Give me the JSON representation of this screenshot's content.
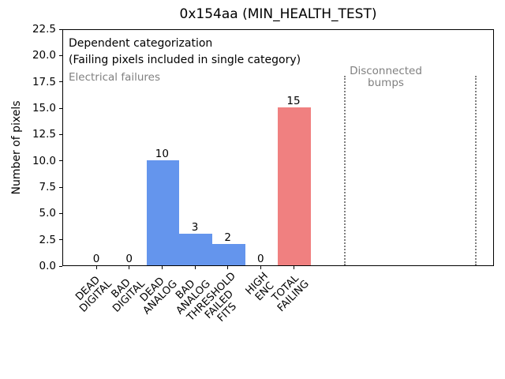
{
  "chart_data": {
    "type": "bar",
    "title": "0x154aa (MIN_HEALTH_TEST)",
    "xlabel": "",
    "ylabel": "Number of pixels",
    "ylim": [
      0,
      22.5
    ],
    "yticks": [
      "0.0",
      "2.5",
      "5.0",
      "7.5",
      "10.0",
      "12.5",
      "15.0",
      "17.5",
      "20.0",
      "22.5"
    ],
    "categories": [
      "DEAD DIGITAL",
      "BAD DIGITAL",
      "DEAD ANALOG",
      "BAD ANALOG",
      "THRESHOLD FAILED FITS",
      "HIGH ENC",
      "TOTAL FAILING"
    ],
    "category_lines": [
      [
        "DEAD",
        "DIGITAL"
      ],
      [
        "BAD",
        "DIGITAL"
      ],
      [
        "DEAD",
        "ANALOG"
      ],
      [
        "BAD",
        "ANALOG"
      ],
      [
        "THRESHOLD",
        "FAILED",
        "FITS"
      ],
      [
        "HIGH",
        "ENC"
      ],
      [
        "TOTAL",
        "FAILING"
      ]
    ],
    "values": [
      0,
      0,
      10,
      3,
      2,
      0,
      15
    ],
    "value_labels": [
      "0",
      "0",
      "10",
      "3",
      "2",
      "0",
      "15"
    ],
    "bar_colors": [
      "#6495ed",
      "#6495ed",
      "#6495ed",
      "#6495ed",
      "#6495ed",
      "#6495ed",
      "#f08080"
    ],
    "grid": false,
    "legend": null,
    "annotations": [
      {
        "text": "Dependent categorization",
        "color": "#000000"
      },
      {
        "text": "(Failing pixels included in single category)",
        "color": "#000000"
      },
      {
        "text": "Electrical failures",
        "color": "#808080"
      },
      {
        "text": "Disconnected\nbumps",
        "color": "#808080"
      }
    ],
    "vlines": {
      "positions_category_units": [
        7.5,
        11.5
      ],
      "ymax_data_units": 18,
      "style": "dotted",
      "color": "#808080"
    },
    "colors": {
      "bar_blue": "#6495ed",
      "bar_red": "#f08080",
      "annotation_gray": "#808080",
      "axis": "#000000",
      "background": "#ffffff"
    }
  }
}
